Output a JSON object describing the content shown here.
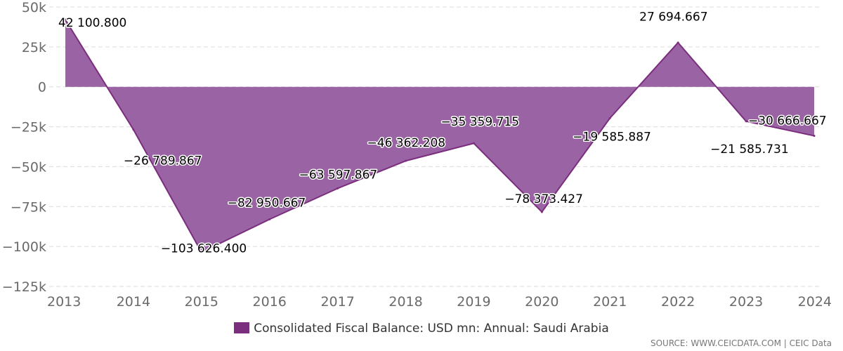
{
  "chart_data": {
    "type": "area",
    "title": "",
    "xlabel": "",
    "ylabel": "",
    "x": [
      "2013",
      "2014",
      "2015",
      "2016",
      "2017",
      "2018",
      "2019",
      "2020",
      "2021",
      "2022",
      "2023",
      "2024"
    ],
    "series": [
      {
        "name": "Consolidated Fiscal Balance: USD mn: Annual: Saudi Arabia",
        "color": "#7b2d7e",
        "fill_color": "#9a64a4",
        "values": [
          42100.8,
          -26789.867,
          -103626.4,
          -82950.667,
          -63597.867,
          -46362.208,
          -35359.715,
          -78373.427,
          -19585.887,
          27694.667,
          -21585.731,
          -30666.667
        ],
        "labels": [
          "42 100.800",
          "−26 789.867",
          "−103 626.400",
          "−82 950.667",
          "−63 597.867",
          "−46 362.208",
          "−35 359.715",
          "−78 373.427",
          "−19 585.887",
          "27 694.667",
          "−21 585.731",
          "−30 666.667"
        ]
      }
    ],
    "ylim": [
      -125000,
      50000
    ],
    "yticks": [
      50000,
      25000,
      0,
      -25000,
      -50000,
      -75000,
      -100000,
      -125000
    ],
    "ytick_labels": [
      "50k",
      "25k",
      "0",
      "−25k",
      "−50k",
      "−75k",
      "−100k",
      "−125k"
    ],
    "grid": true,
    "legend_position": "bottom-center"
  },
  "legend": {
    "label": "Consolidated Fiscal Balance: USD mn: Annual: Saudi Arabia"
  },
  "source": {
    "text": "SOURCE: WWW.CEICDATA.COM | CEIC Data"
  }
}
